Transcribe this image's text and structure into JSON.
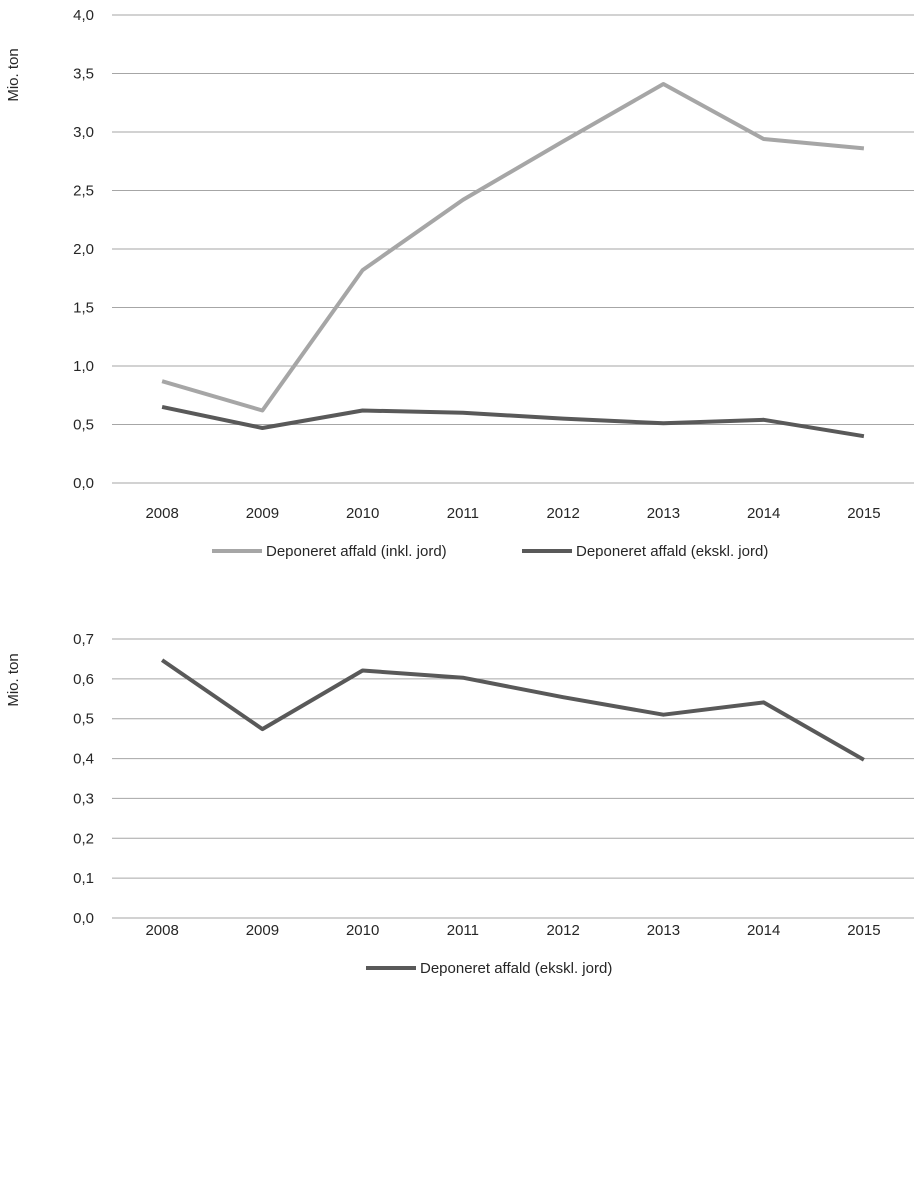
{
  "chart_data": [
    {
      "type": "line",
      "title": "",
      "xlabel": "",
      "ylabel": "Mio. ton",
      "categories": [
        "2008",
        "2009",
        "2010",
        "2011",
        "2012",
        "2013",
        "2014",
        "2015"
      ],
      "y_ticks": [
        "0,0",
        "0,5",
        "1,0",
        "1,5",
        "2,0",
        "2,5",
        "3,0",
        "3,5",
        "4,0"
      ],
      "ylim": [
        0,
        4
      ],
      "grid": true,
      "legend_position": "bottom",
      "series": [
        {
          "name": "Deponeret affald (inkl. jord)",
          "color": "#a6a6a6",
          "values": [
            0.87,
            0.62,
            1.82,
            2.42,
            2.92,
            3.41,
            2.94,
            2.86
          ]
        },
        {
          "name": "Deponeret affald (ekskl. jord)",
          "color": "#595959",
          "values": [
            0.65,
            0.47,
            0.62,
            0.6,
            0.55,
            0.51,
            0.54,
            0.4
          ]
        }
      ]
    },
    {
      "type": "line",
      "title": "",
      "xlabel": "",
      "ylabel": "Mio. ton",
      "categories": [
        "2008",
        "2009",
        "2010",
        "2011",
        "2012",
        "2013",
        "2014",
        "2015"
      ],
      "y_ticks": [
        "0,0",
        "0,1",
        "0,2",
        "0,3",
        "0,4",
        "0,5",
        "0,6",
        "0,7"
      ],
      "ylim": [
        0,
        0.7
      ],
      "grid": true,
      "legend_position": "bottom",
      "series": [
        {
          "name": "Deponeret affald (ekskl. jord)",
          "color": "#595959",
          "values": [
            0.647,
            0.474,
            0.621,
            0.603,
            0.554,
            0.51,
            0.541,
            0.397
          ]
        }
      ]
    }
  ]
}
